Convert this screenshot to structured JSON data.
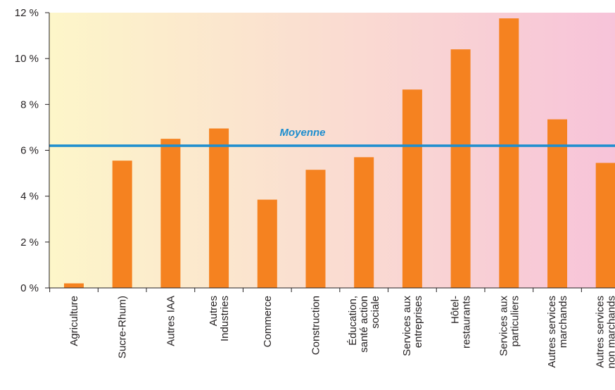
{
  "colors": {
    "bar": "#f58220",
    "average_line": "#1d8ecf",
    "average_label": "#1d8ecf",
    "axis": "#231f20",
    "background_left": "#fdf6c9",
    "background_right": "#f7c3d9"
  },
  "chart_data": {
    "type": "bar",
    "title": "",
    "xlabel": "",
    "ylabel": "",
    "ylim": [
      0,
      12
    ],
    "yticks": [
      0,
      2,
      4,
      6,
      8,
      10,
      12
    ],
    "ytick_labels": [
      "0 %",
      "2 %",
      "4 %",
      "6 %",
      "8 %",
      "10 %",
      "12 %"
    ],
    "grid": false,
    "categories": [
      [
        "Agriculture"
      ],
      [
        "Sucre-Rhum)"
      ],
      [
        "Autres IAA"
      ],
      [
        "Autres",
        "Industries"
      ],
      [
        "Commerce"
      ],
      [
        "Construction"
      ],
      [
        "Éducation,",
        "santé action",
        "sociale"
      ],
      [
        "Services aux",
        "entreprises"
      ],
      [
        "Hôtel-",
        "restaurants"
      ],
      [
        "Services aux",
        "particuliers"
      ],
      [
        "Autres services",
        "marchands"
      ],
      [
        "Autres services",
        "non marchands"
      ]
    ],
    "values": [
      0.2,
      5.55,
      6.5,
      6.95,
      3.85,
      5.15,
      5.7,
      8.65,
      10.4,
      11.75,
      7.35,
      5.45
    ],
    "average": {
      "label": "Moyenne",
      "value": 6.2
    }
  }
}
